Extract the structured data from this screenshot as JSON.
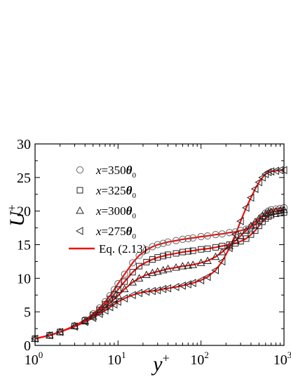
{
  "chart_data": {
    "type": "scatter",
    "title": "",
    "xlabel_main": "y",
    "xlabel_sup": "+",
    "ylabel_main": "U",
    "ylabel_sup": "+",
    "xscale": "log",
    "xlim": [
      1,
      1000
    ],
    "ylim": [
      0,
      30
    ],
    "x_ticks": [
      {
        "base": "10",
        "exp": "0"
      },
      {
        "base": "10",
        "exp": "1"
      },
      {
        "base": "10",
        "exp": "2"
      },
      {
        "base": "10",
        "exp": "3"
      }
    ],
    "y_ticks": [
      "0",
      "5",
      "10",
      "15",
      "20",
      "25",
      "30"
    ],
    "legend_position": "upper-left",
    "series": [
      {
        "name": "x=350 θ0",
        "legend_text": "x=350",
        "legend_sub": "0",
        "marker": "circle",
        "color": "#666666",
        "x": [
          1,
          1.5,
          2,
          3,
          4,
          5,
          6,
          7,
          8,
          9,
          10,
          12,
          15,
          18,
          22,
          26,
          30,
          35,
          40,
          50,
          60,
          70,
          80,
          100,
          120,
          150,
          180,
          220,
          260,
          300,
          350,
          400,
          450,
          500,
          550,
          600,
          650,
          700,
          800,
          900,
          1000
        ],
        "y": [
          1.0,
          1.5,
          2.0,
          2.9,
          3.8,
          4.7,
          5.6,
          6.5,
          7.4,
          8.3,
          9.2,
          10.6,
          12.3,
          13.4,
          14.2,
          14.7,
          15.0,
          15.2,
          15.4,
          15.6,
          15.8,
          15.9,
          16.0,
          16.2,
          16.3,
          16.5,
          16.6,
          16.8,
          16.9,
          17.1,
          17.3,
          17.6,
          18.0,
          18.6,
          19.2,
          19.7,
          20.0,
          20.2,
          20.3,
          20.4,
          20.5
        ]
      },
      {
        "name": "x=325 θ0",
        "legend_text": "x=325",
        "legend_sub": "0",
        "marker": "square",
        "color": "#222222",
        "x": [
          1,
          1.5,
          2,
          3,
          4,
          5,
          6,
          7,
          8,
          9,
          10,
          12,
          15,
          18,
          22,
          26,
          30,
          35,
          40,
          50,
          60,
          70,
          80,
          100,
          120,
          150,
          180,
          220,
          260,
          300,
          350,
          400,
          450,
          500,
          550,
          600,
          650,
          700,
          800,
          900,
          1000
        ],
        "y": [
          1.0,
          1.5,
          2.0,
          2.9,
          3.7,
          4.5,
          5.3,
          6.1,
          6.9,
          7.6,
          8.3,
          9.5,
          10.9,
          11.8,
          12.4,
          12.8,
          13.1,
          13.3,
          13.5,
          13.7,
          13.9,
          14.0,
          14.1,
          14.3,
          14.4,
          14.6,
          14.8,
          15.0,
          15.2,
          15.5,
          15.9,
          16.5,
          17.1,
          17.8,
          18.4,
          18.9,
          19.2,
          19.4,
          19.6,
          19.7,
          19.8
        ]
      },
      {
        "name": "x=300 θ0",
        "legend_text": "x=300",
        "legend_sub": "0",
        "marker": "triangle",
        "color": "#222222",
        "x": [
          1,
          1.5,
          2,
          3,
          4,
          5,
          6,
          7,
          8,
          9,
          10,
          12,
          15,
          18,
          22,
          26,
          30,
          35,
          40,
          50,
          60,
          70,
          80,
          100,
          120,
          150,
          180,
          220,
          260,
          300,
          350,
          400,
          450,
          500,
          550,
          600,
          650,
          700,
          800,
          900,
          1000
        ],
        "y": [
          1.0,
          1.5,
          2.0,
          2.9,
          3.6,
          4.3,
          5.0,
          5.7,
          6.3,
          6.9,
          7.4,
          8.4,
          9.4,
          10.0,
          10.5,
          10.8,
          11.0,
          11.2,
          11.4,
          11.6,
          11.8,
          11.9,
          12.0,
          12.3,
          12.6,
          13.2,
          13.9,
          14.8,
          15.6,
          16.3,
          17.1,
          17.8,
          18.4,
          18.9,
          19.3,
          19.6,
          19.8,
          19.9,
          20.0,
          20.1,
          20.2
        ]
      },
      {
        "name": "x=275 θ0",
        "legend_text": "x=275",
        "legend_sub": "0",
        "marker": "triangle-left",
        "color": "#222222",
        "x": [
          1,
          1.5,
          2,
          3,
          4,
          5,
          6,
          7,
          8,
          9,
          10,
          12,
          15,
          18,
          22,
          26,
          30,
          35,
          40,
          50,
          60,
          70,
          80,
          100,
          120,
          150,
          180,
          220,
          260,
          300,
          350,
          400,
          450,
          500,
          550,
          600,
          650,
          700,
          800,
          900,
          1000
        ],
        "y": [
          1.0,
          1.5,
          2.0,
          2.8,
          3.5,
          4.1,
          4.7,
          5.2,
          5.7,
          6.1,
          6.5,
          7.0,
          7.5,
          7.8,
          8.0,
          8.1,
          8.2,
          8.4,
          8.5,
          8.7,
          8.9,
          9.1,
          9.3,
          9.7,
          10.2,
          11.2,
          12.5,
          14.5,
          16.5,
          18.5,
          20.5,
          22.0,
          23.3,
          24.3,
          25.0,
          25.5,
          25.8,
          25.9,
          26.0,
          26.1,
          26.1
        ]
      }
    ],
    "fit_line": {
      "name": "Eq. (2.13)",
      "color": "#ee1111",
      "applies_to": "all series"
    }
  }
}
